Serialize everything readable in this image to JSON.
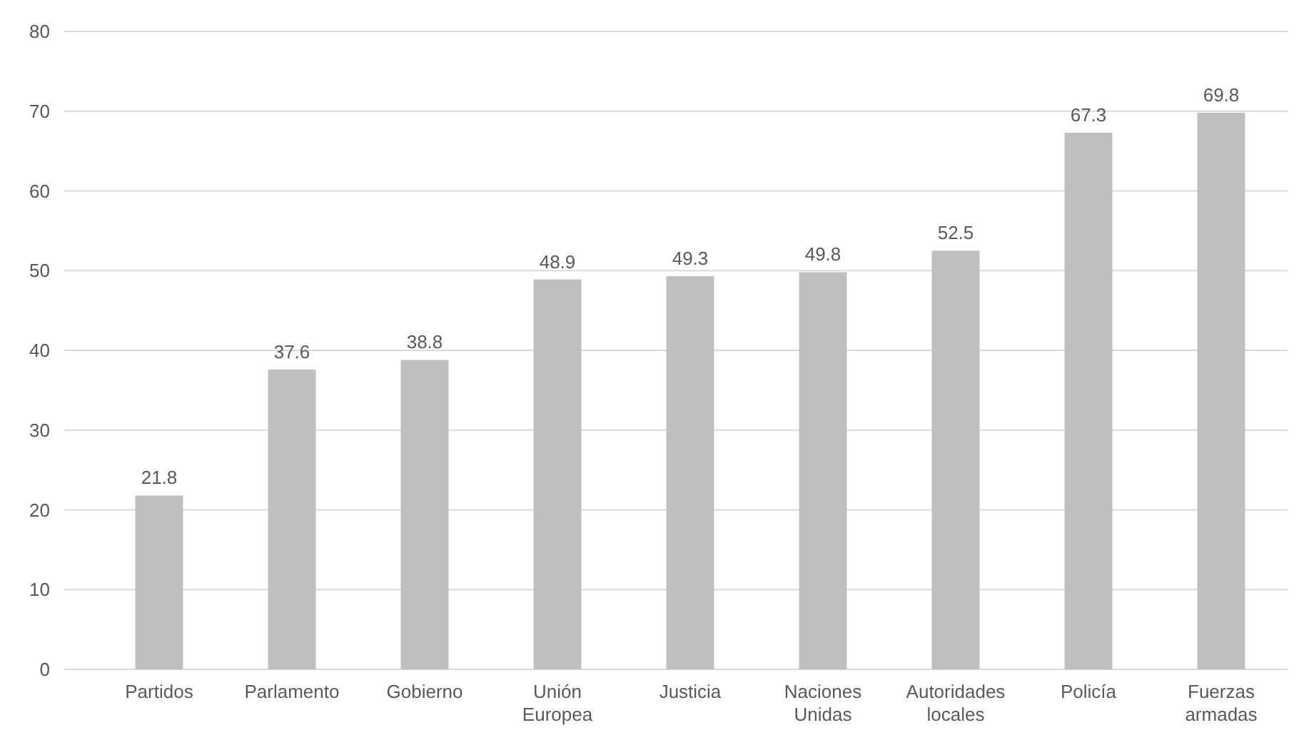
{
  "chart_data": {
    "type": "bar",
    "categories": [
      "Partidos",
      "Parlamento",
      "Gobierno",
      "Unión Europea",
      "Justicia",
      "Naciones Unidas",
      "Autoridades locales",
      "Policía",
      "Fuerzas armadas"
    ],
    "values": [
      21.8,
      37.6,
      38.8,
      48.9,
      49.3,
      49.8,
      52.5,
      67.3,
      69.8
    ],
    "color": "#bfbfbf",
    "ylim": [
      0,
      80
    ],
    "yticks": [
      0,
      10,
      20,
      30,
      40,
      50,
      60,
      70,
      80
    ],
    "grid": "y",
    "data_labels": true
  }
}
